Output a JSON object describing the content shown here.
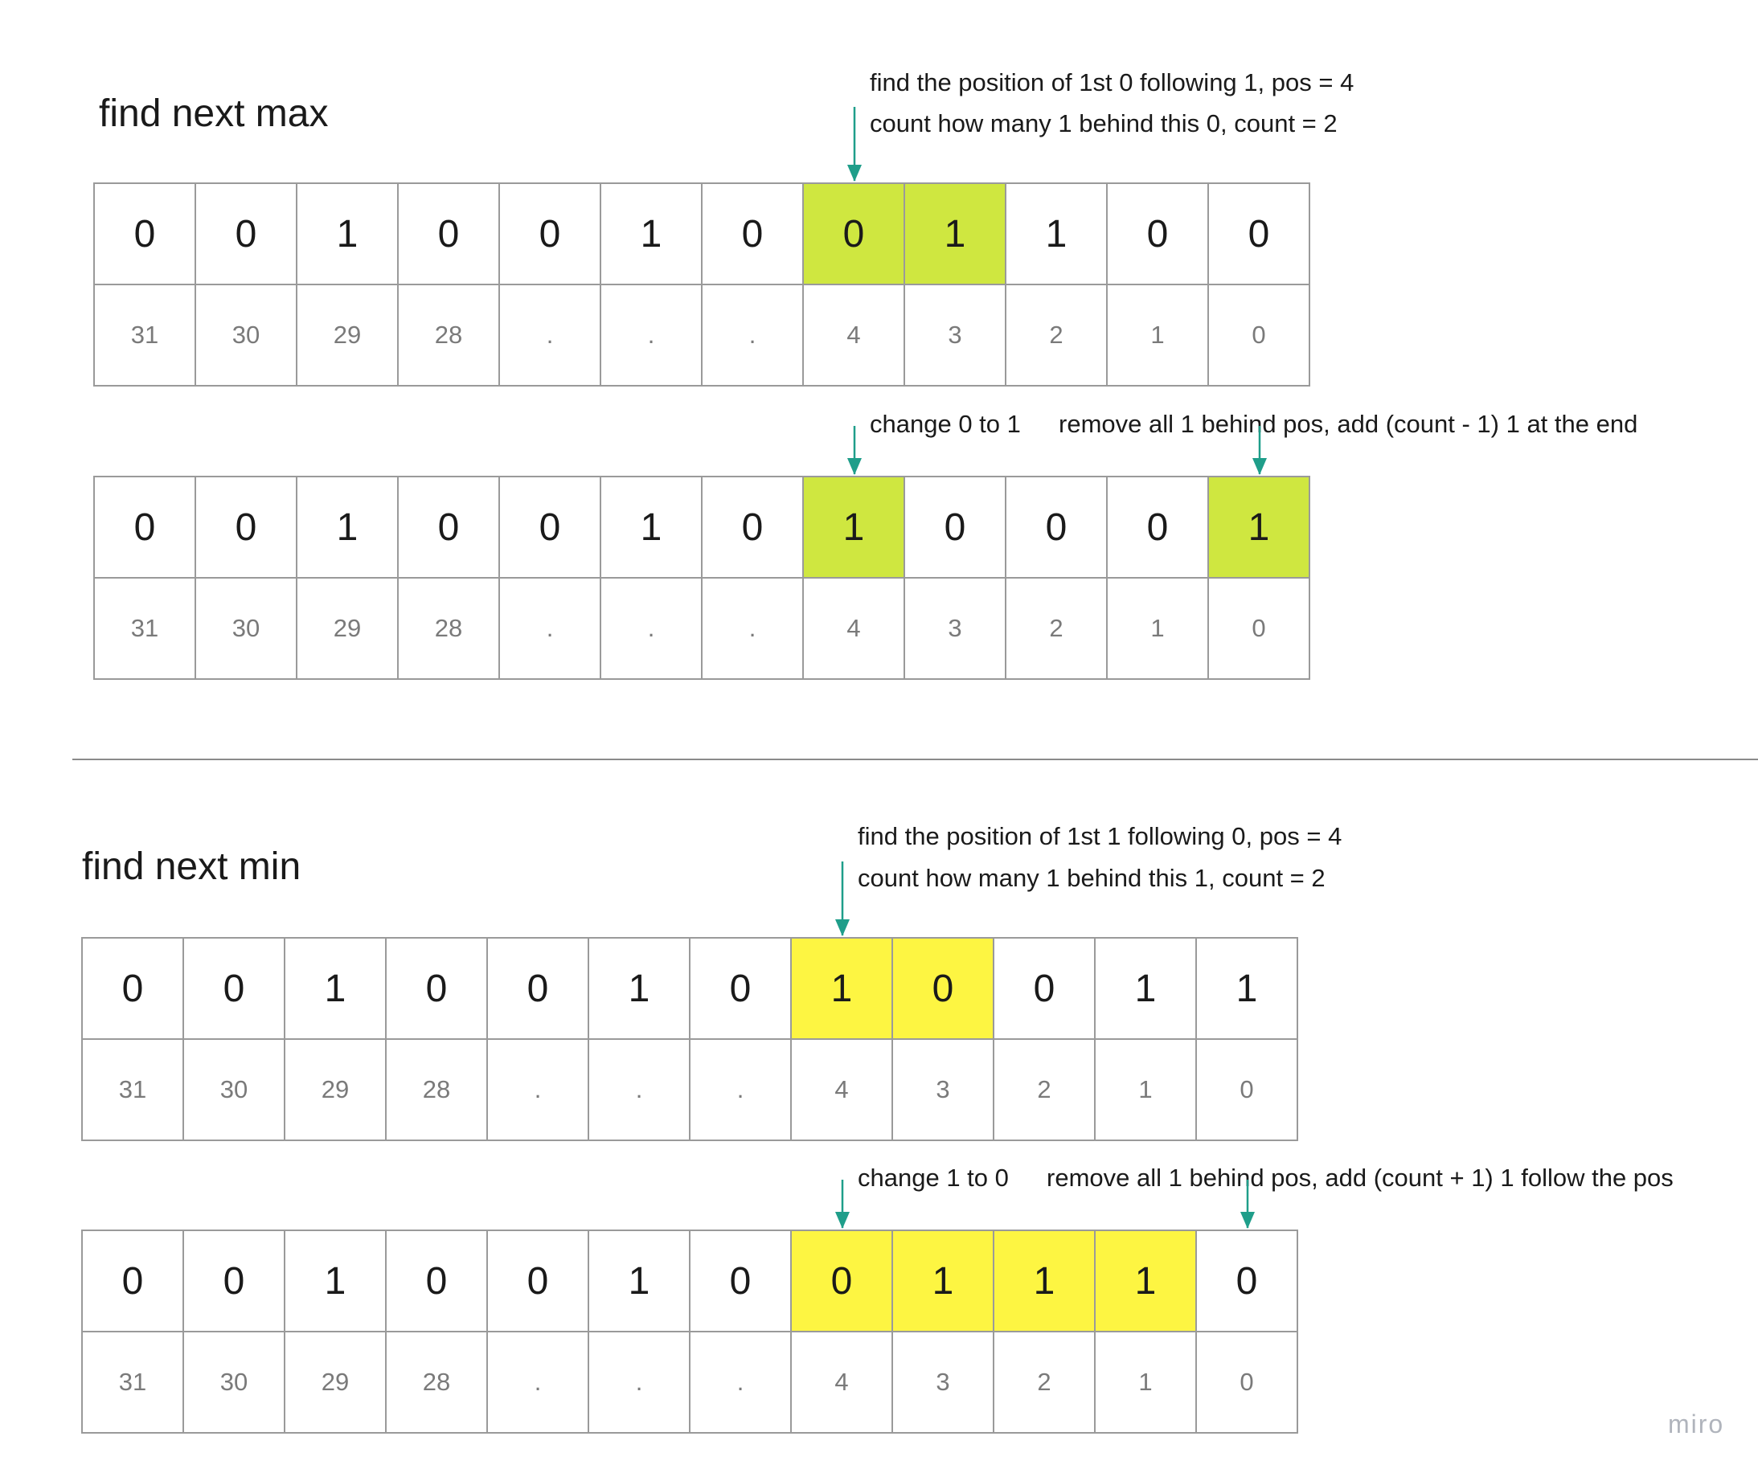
{
  "colors": {
    "highlight_green": "#cfe740",
    "highlight_yellow": "#fdf542",
    "arrow": "#1f9e8a",
    "grid_border": "#9a9a9a"
  },
  "sections": [
    {
      "title": "find next max",
      "notes": [
        "find the position of 1st 0 following 1, pos = 4",
        "count how many 1 behind this 0, count = 2"
      ],
      "before": {
        "bits": [
          "0",
          "0",
          "1",
          "0",
          "0",
          "1",
          "0",
          "0",
          "1",
          "1",
          "0",
          "0"
        ],
        "indices": [
          "31",
          "30",
          "29",
          "28",
          ".",
          ".",
          ".",
          "4",
          "3",
          "2",
          "1",
          "0"
        ],
        "highlight": [
          7,
          8
        ]
      },
      "change_labels": [
        "change 0 to 1",
        "remove all 1 behind pos, add (count - 1) 1 at the end"
      ],
      "after": {
        "bits": [
          "0",
          "0",
          "1",
          "0",
          "0",
          "1",
          "0",
          "1",
          "0",
          "0",
          "0",
          "1"
        ],
        "indices": [
          "31",
          "30",
          "29",
          "28",
          ".",
          ".",
          ".",
          "4",
          "3",
          "2",
          "1",
          "0"
        ],
        "highlight": [
          7,
          11
        ]
      }
    },
    {
      "title": "find next min",
      "notes": [
        "find the position of 1st 1 following 0, pos = 4",
        "count how many 1 behind this 1, count = 2"
      ],
      "before": {
        "bits": [
          "0",
          "0",
          "1",
          "0",
          "0",
          "1",
          "0",
          "1",
          "0",
          "0",
          "1",
          "1"
        ],
        "indices": [
          "31",
          "30",
          "29",
          "28",
          ".",
          ".",
          ".",
          "4",
          "3",
          "2",
          "1",
          "0"
        ],
        "highlight": [
          7,
          8
        ]
      },
      "change_labels": [
        "change 1 to 0",
        "remove all 1 behind pos, add (count + 1) 1 follow the pos"
      ],
      "after": {
        "bits": [
          "0",
          "0",
          "1",
          "0",
          "0",
          "1",
          "0",
          "0",
          "1",
          "1",
          "1",
          "0"
        ],
        "indices": [
          "31",
          "30",
          "29",
          "28",
          ".",
          ".",
          ".",
          "4",
          "3",
          "2",
          "1",
          "0"
        ],
        "highlight": [
          7,
          8,
          9,
          10
        ]
      }
    }
  ],
  "watermark": "miro"
}
